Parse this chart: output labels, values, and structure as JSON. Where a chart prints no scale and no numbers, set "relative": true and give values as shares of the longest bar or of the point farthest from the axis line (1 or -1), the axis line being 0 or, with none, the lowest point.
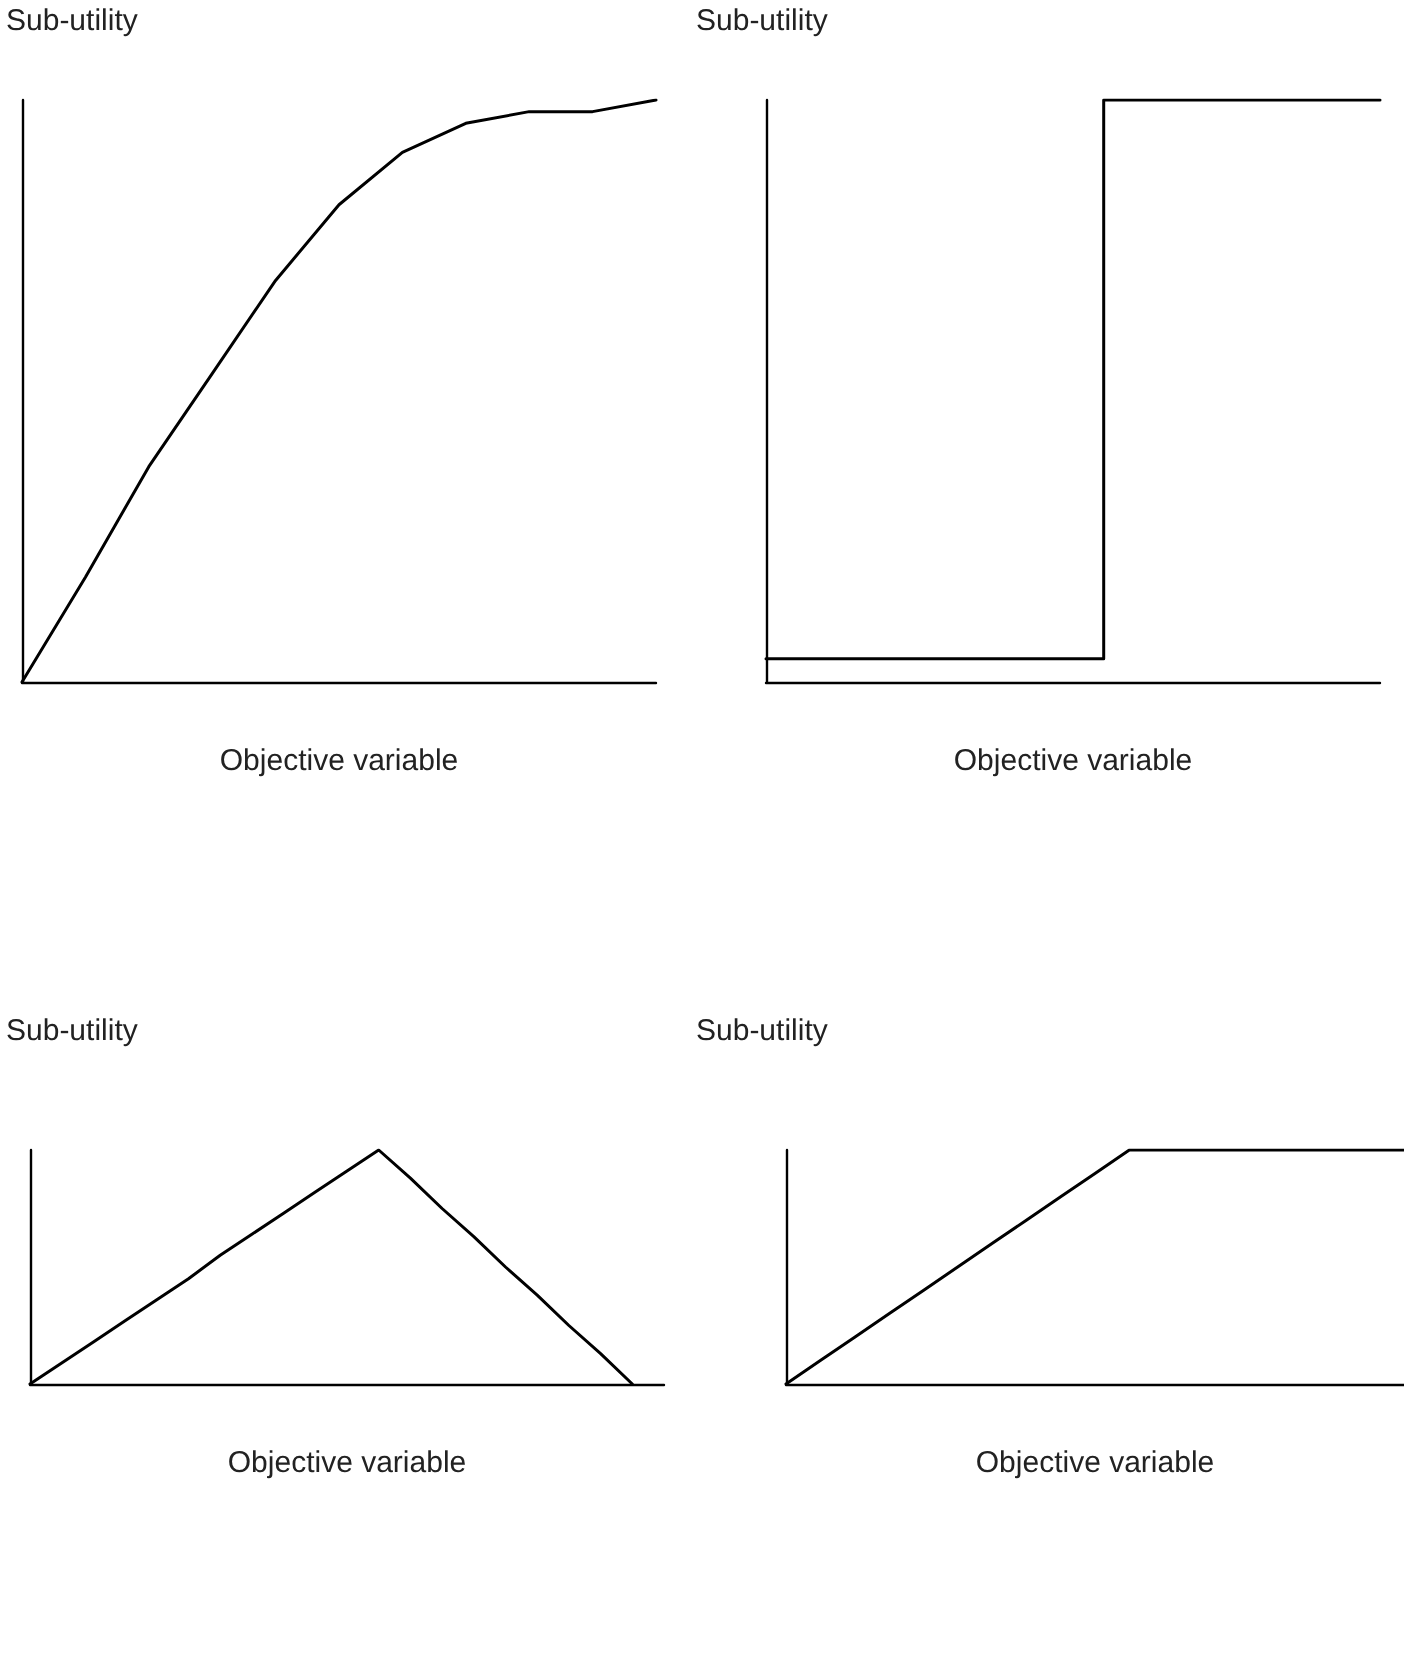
{
  "chart_data": [
    {
      "type": "line",
      "relative": true,
      "ylabel": "Sub-utility",
      "xlabel": "Objective variable",
      "categories": [
        null,
        null,
        null,
        null,
        null,
        null,
        null,
        null,
        null,
        null,
        null
      ],
      "values": [
        0,
        0.18,
        0.37,
        0.53,
        0.69,
        0.82,
        0.91,
        0.96,
        0.98,
        0.98,
        1
      ],
      "color": "#000000",
      "marker": "none",
      "line_style": "solid",
      "tick_labels": false
    },
    {
      "type": "step",
      "relative": true,
      "ylabel": "Sub-utility",
      "xlabel": "Objective variable",
      "categories": [
        null,
        null,
        null,
        null,
        null,
        null,
        null,
        null,
        null,
        null,
        null,
        null,
        null,
        null,
        null,
        null,
        null,
        null,
        null,
        null,
        null
      ],
      "values": [
        0.04,
        0.04,
        0.04,
        0.04,
        0.04,
        0.04,
        0.04,
        0.04,
        0.04,
        0.04,
        0.04,
        1,
        1,
        1,
        1,
        1,
        1,
        1,
        1,
        1,
        1
      ],
      "color": "#000000",
      "marker": "none",
      "line_style": "solid",
      "tick_labels": false
    },
    {
      "type": "line",
      "relative": true,
      "ylabel": "Sub-utility",
      "xlabel": "Objective variable",
      "categories": [
        null,
        null,
        null,
        null,
        null,
        null,
        null,
        null,
        null,
        null,
        null,
        null,
        null,
        null,
        null,
        null,
        null,
        null,
        null,
        null,
        null
      ],
      "values": [
        0,
        0.09,
        0.18,
        0.27,
        0.36,
        0.45,
        0.55,
        0.64,
        0.73,
        0.82,
        0.91,
        1,
        0.88,
        0.75,
        0.63,
        0.5,
        0.38,
        0.25,
        0.13,
        0,
        null
      ],
      "color": "#000000",
      "marker": "none",
      "line_style": "solid",
      "tick_labels": false
    },
    {
      "type": "line",
      "relative": true,
      "ylabel": "Sub-utility",
      "xlabel": "Objective variable",
      "categories": [
        null,
        null,
        null,
        null,
        null,
        null,
        null,
        null,
        null,
        null,
        null,
        null,
        null,
        null,
        null,
        null,
        null,
        null,
        null
      ],
      "values": [
        0,
        0.1,
        0.2,
        0.3,
        0.4,
        0.5,
        0.6,
        0.7,
        0.8,
        0.9,
        1,
        1,
        1,
        1,
        1,
        1,
        1,
        1,
        1
      ],
      "color": "#000000",
      "marker": "none",
      "line_style": "solid",
      "tick_labels": false
    }
  ]
}
